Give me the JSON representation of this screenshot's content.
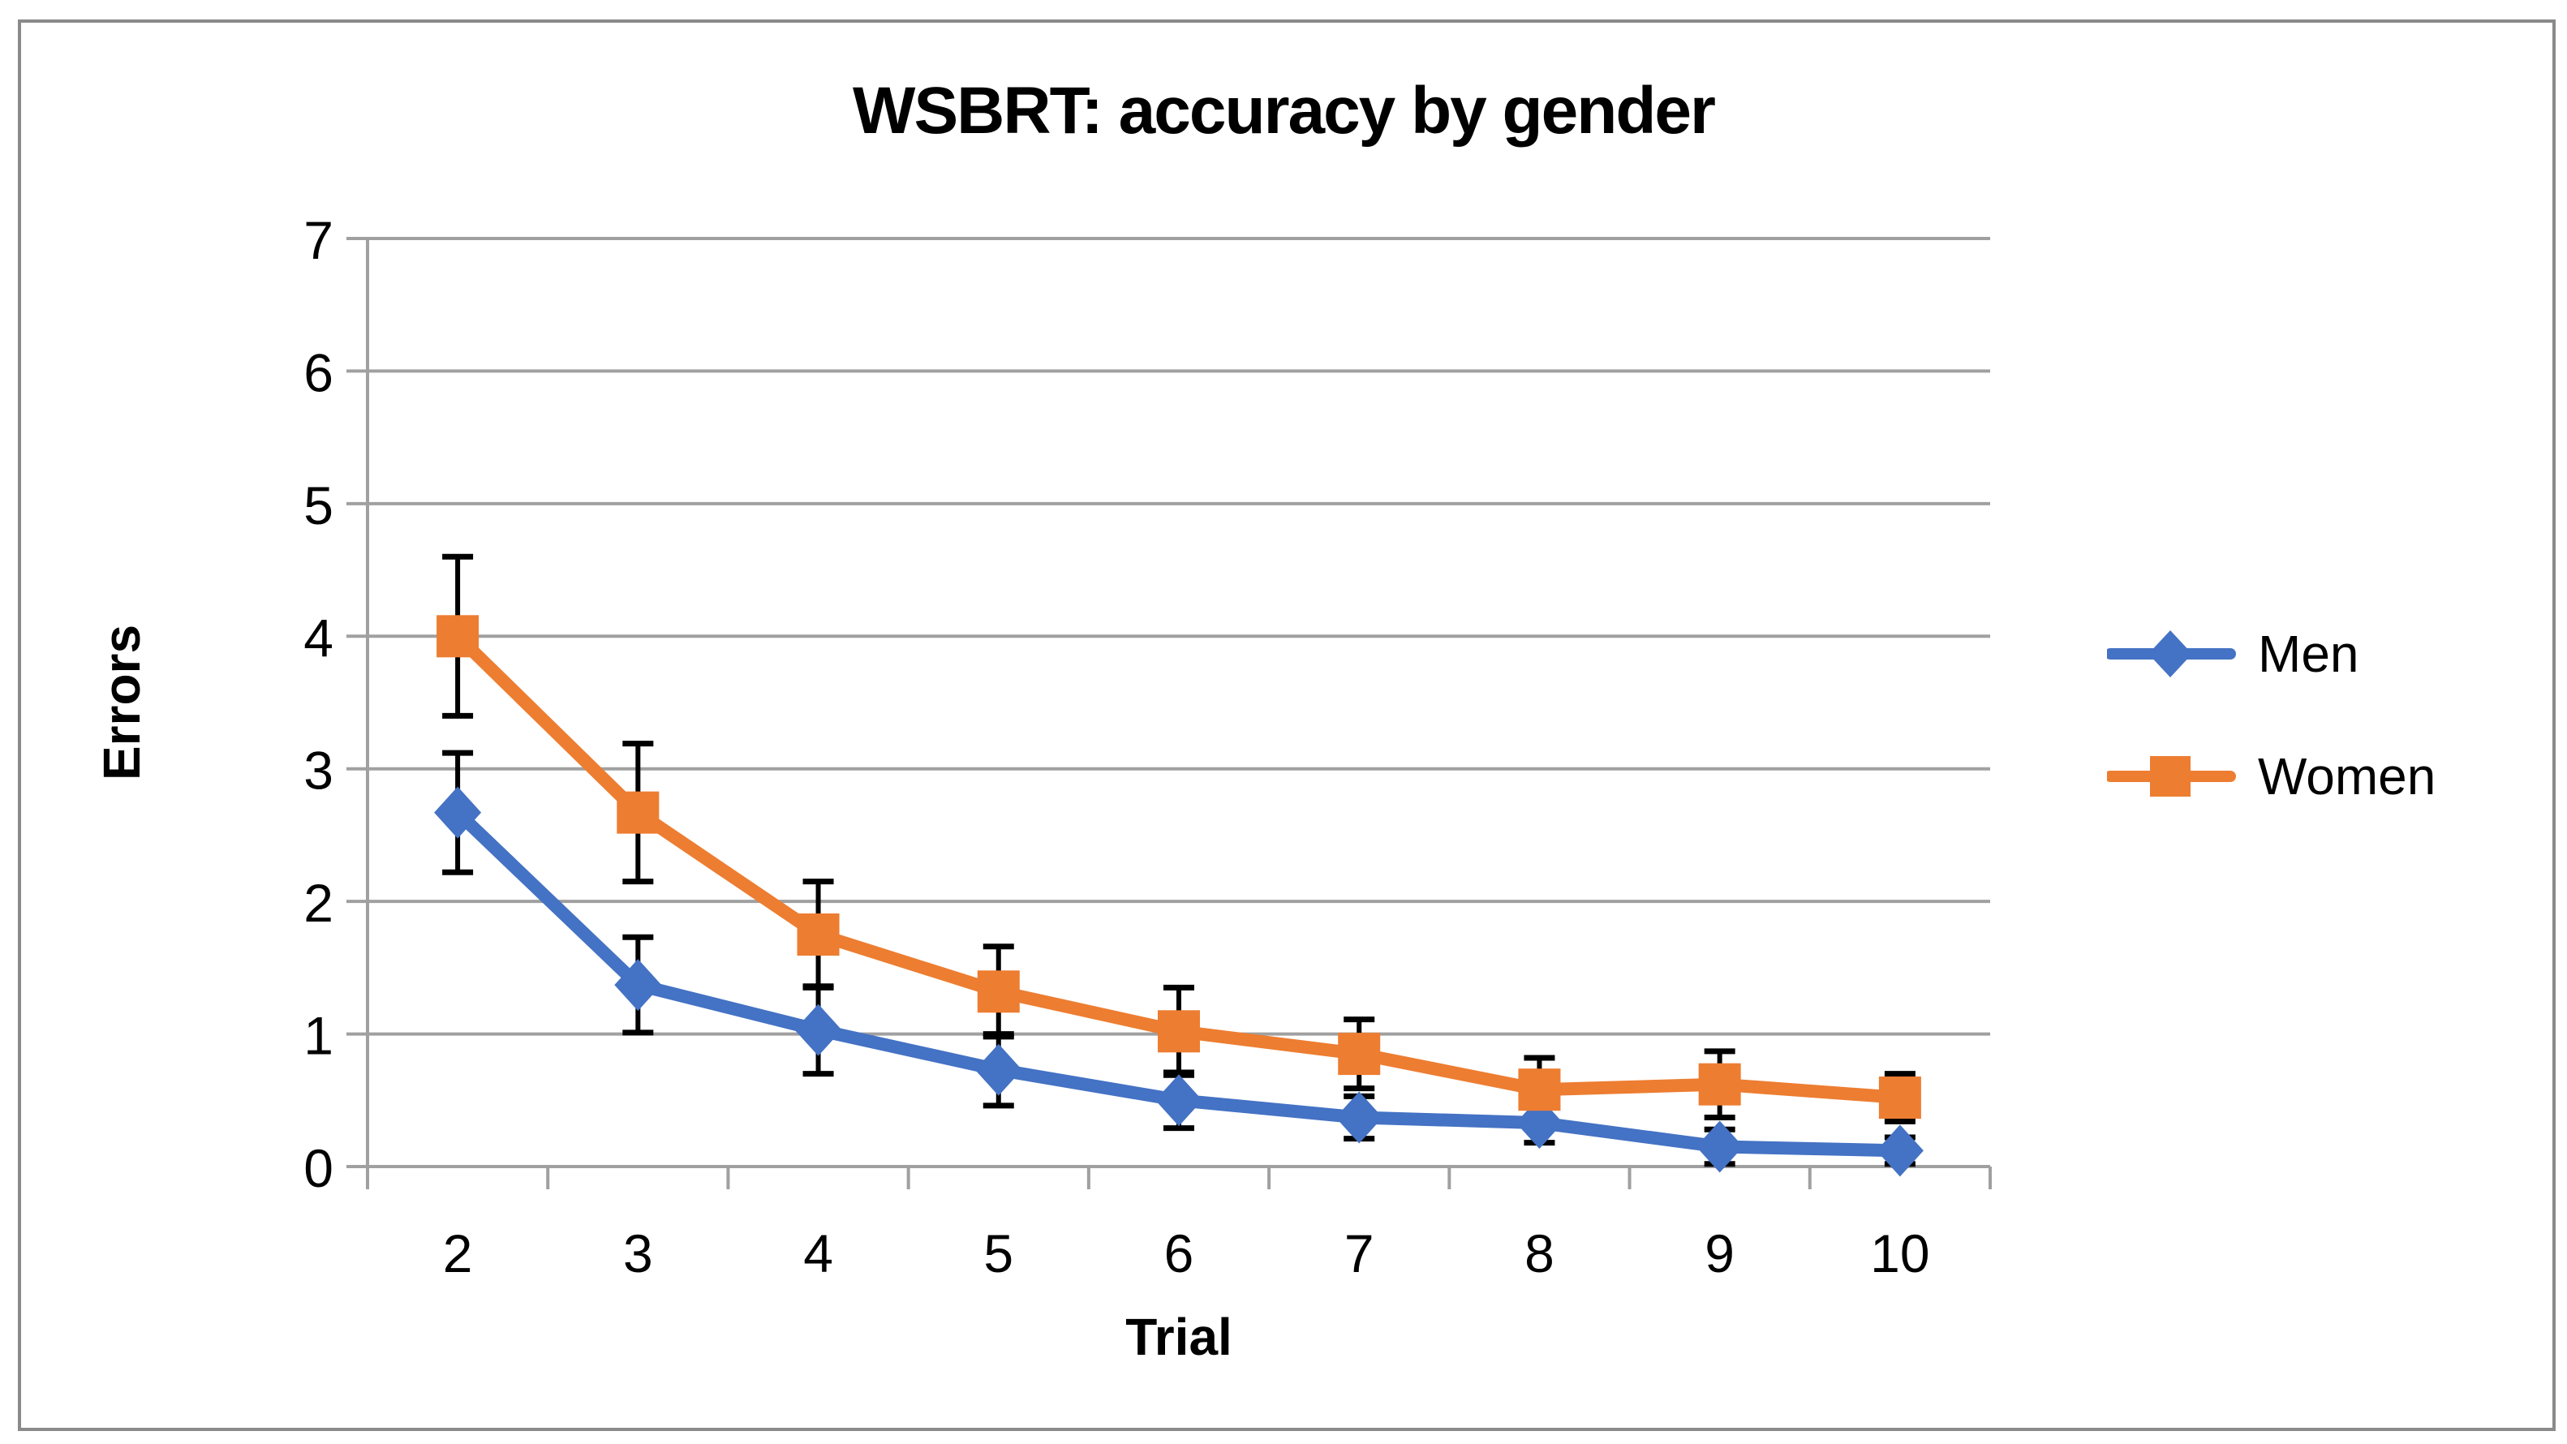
{
  "frame": {
    "border_color": "#8A8A8A",
    "background": "#FFFFFF"
  },
  "chart_data": {
    "type": "line",
    "title": "WSBRT: accuracy by gender",
    "xlabel": "Trial",
    "ylabel": "Errors",
    "categories": [
      "2",
      "3",
      "4",
      "5",
      "6",
      "7",
      "8",
      "9",
      "10"
    ],
    "ylim": [
      0,
      7
    ],
    "yticks": [
      "0",
      "1",
      "2",
      "3",
      "4",
      "5",
      "6",
      "7"
    ],
    "grid": true,
    "grid_color": "#A0A0A0",
    "axis_color": "#A0A0A0",
    "error_bar_color": "#000000",
    "text_color": "#000000",
    "legend_position": "right",
    "series": [
      {
        "name": "Men",
        "color": "#4472C4",
        "marker": "diamond",
        "values": [
          2.67,
          1.37,
          1.03,
          0.73,
          0.5,
          0.37,
          0.33,
          0.15,
          0.12
        ],
        "errors": [
          0.45,
          0.36,
          0.33,
          0.27,
          0.21,
          0.16,
          0.15,
          0.13,
          0.1
        ]
      },
      {
        "name": "Women",
        "color": "#ED7D31",
        "marker": "square",
        "values": [
          4.0,
          2.67,
          1.75,
          1.32,
          1.02,
          0.85,
          0.58,
          0.62,
          0.52
        ],
        "errors": [
          0.6,
          0.52,
          0.4,
          0.34,
          0.33,
          0.26,
          0.24,
          0.25,
          0.18
        ]
      }
    ]
  }
}
